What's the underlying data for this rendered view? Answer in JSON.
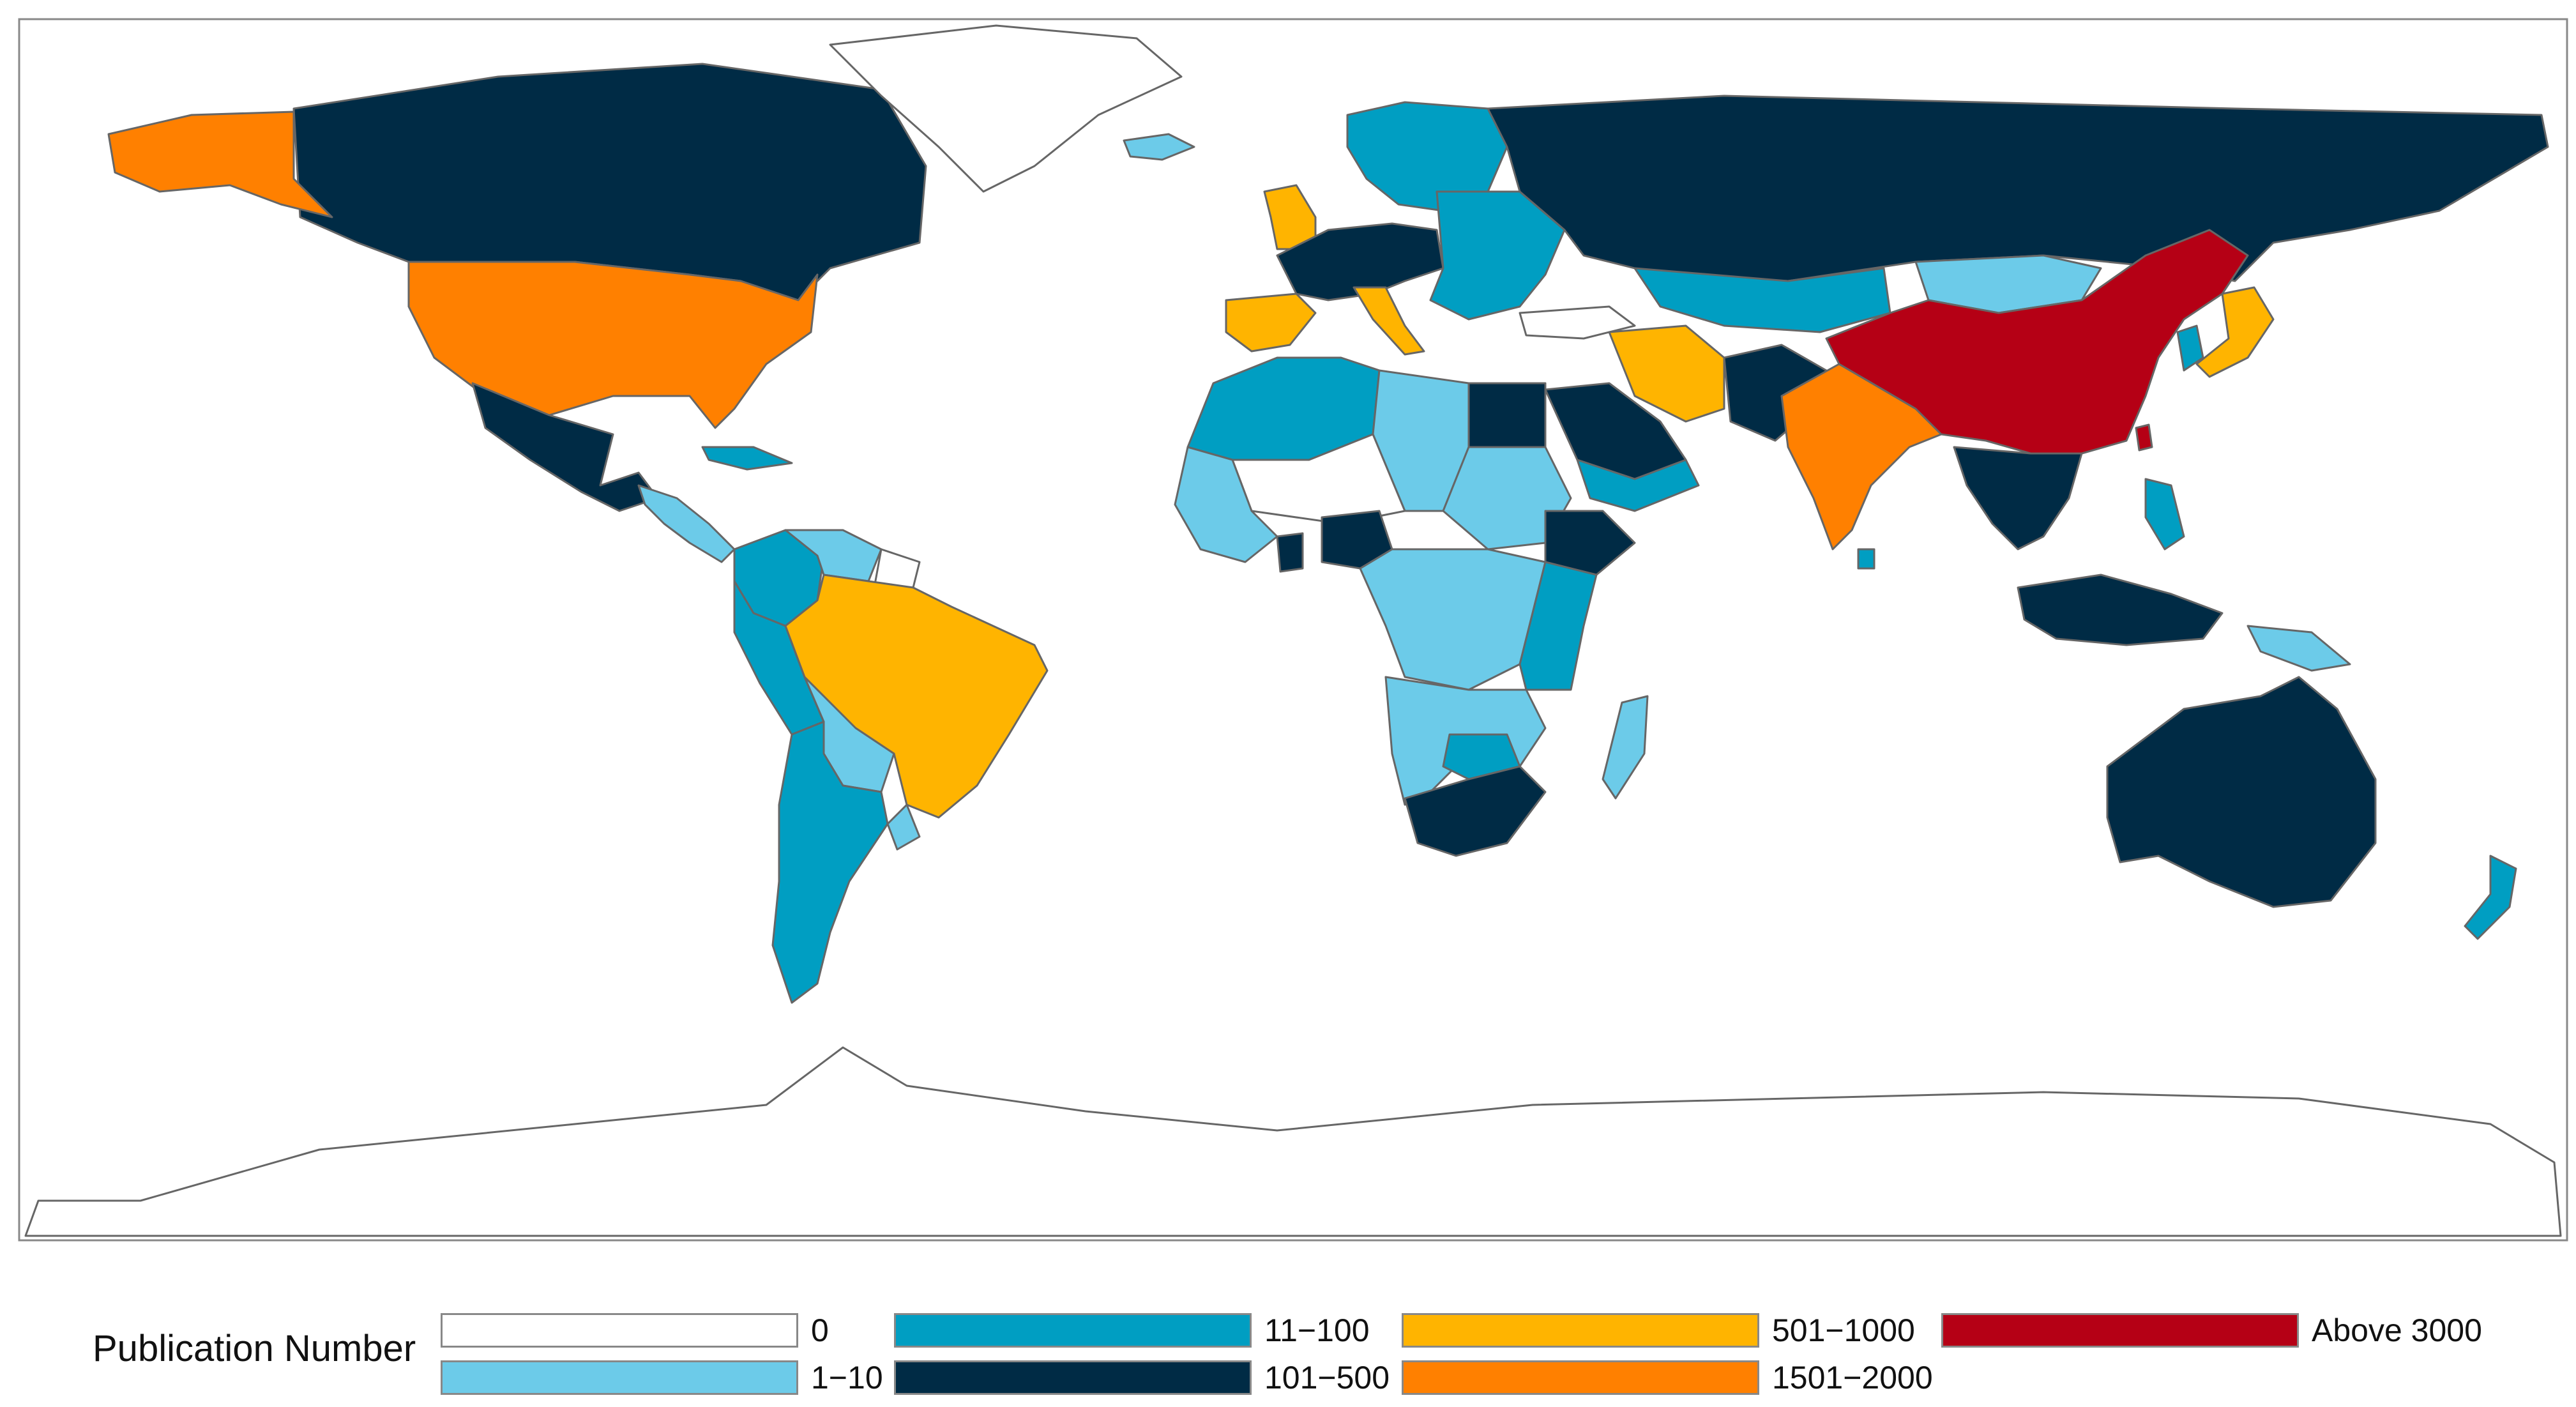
{
  "map": {
    "projection": "equirectangular",
    "frame": "thin grey border",
    "ocean_color": "#ffffff",
    "no_data_outline": "#666666"
  },
  "legend": {
    "title": "Publication Number",
    "classes": [
      {
        "id": "c0",
        "label": "0",
        "color": "#ffffff"
      },
      {
        "id": "c1",
        "label": "1−10",
        "color": "#6ccbe9"
      },
      {
        "id": "c2",
        "label": "11−100",
        "color": "#009ec2"
      },
      {
        "id": "c3",
        "label": "101−500",
        "color": "#002b45"
      },
      {
        "id": "c4",
        "label": "501−1000",
        "color": "#ffb400"
      },
      {
        "id": "c5",
        "label": "1501−2000",
        "color": "#ff8000"
      },
      {
        "id": "c6",
        "label": "Above 3000",
        "color": "#b50015"
      }
    ]
  },
  "regions": [
    {
      "id": "canada",
      "class": "c3"
    },
    {
      "id": "alaska",
      "class": "c5"
    },
    {
      "id": "usa",
      "class": "c5"
    },
    {
      "id": "mexico",
      "class": "c3"
    },
    {
      "id": "greenland",
      "class": "c0"
    },
    {
      "id": "central-america",
      "class": "c1"
    },
    {
      "id": "caribbean",
      "class": "c2"
    },
    {
      "id": "colombia",
      "class": "c2"
    },
    {
      "id": "venezuela",
      "class": "c1"
    },
    {
      "id": "guianas",
      "class": "c0"
    },
    {
      "id": "ecuador-peru",
      "class": "c2"
    },
    {
      "id": "brazil",
      "class": "c4"
    },
    {
      "id": "bolivia-paraguay",
      "class": "c1"
    },
    {
      "id": "argentina-chile",
      "class": "c2"
    },
    {
      "id": "uruguay",
      "class": "c1"
    },
    {
      "id": "iceland",
      "class": "c1"
    },
    {
      "id": "scandinavia",
      "class": "c2"
    },
    {
      "id": "uk",
      "class": "c4"
    },
    {
      "id": "western-europe",
      "class": "c3"
    },
    {
      "id": "iberia",
      "class": "c4"
    },
    {
      "id": "italy",
      "class": "c4"
    },
    {
      "id": "eastern-europe",
      "class": "c2"
    },
    {
      "id": "russia",
      "class": "c3"
    },
    {
      "id": "kazakhstan",
      "class": "c2"
    },
    {
      "id": "mongolia",
      "class": "c1"
    },
    {
      "id": "turkey",
      "class": "c0"
    },
    {
      "id": "iran",
      "class": "c4"
    },
    {
      "id": "afghanistan-pakistan",
      "class": "c3"
    },
    {
      "id": "saudi-arabia",
      "class": "c3"
    },
    {
      "id": "gulf-yemen",
      "class": "c2"
    },
    {
      "id": "india",
      "class": "c5"
    },
    {
      "id": "sri-lanka",
      "class": "c2"
    },
    {
      "id": "china",
      "class": "c6"
    },
    {
      "id": "taiwan",
      "class": "c6"
    },
    {
      "id": "korea",
      "class": "c2"
    },
    {
      "id": "japan",
      "class": "c4"
    },
    {
      "id": "mainland-southeast-asia",
      "class": "c3"
    },
    {
      "id": "philippines",
      "class": "c2"
    },
    {
      "id": "indonesia",
      "class": "c3"
    },
    {
      "id": "papua-new-guinea",
      "class": "c1"
    },
    {
      "id": "australia",
      "class": "c3"
    },
    {
      "id": "new-zealand",
      "class": "c2"
    },
    {
      "id": "north-west-africa",
      "class": "c2"
    },
    {
      "id": "libya-chad",
      "class": "c1"
    },
    {
      "id": "sahel",
      "class": "c0"
    },
    {
      "id": "egypt",
      "class": "c3"
    },
    {
      "id": "sudan",
      "class": "c1"
    },
    {
      "id": "west-africa",
      "class": "c1"
    },
    {
      "id": "nigeria",
      "class": "c3"
    },
    {
      "id": "ghana",
      "class": "c3"
    },
    {
      "id": "ethiopia",
      "class": "c3"
    },
    {
      "id": "central-africa",
      "class": "c1"
    },
    {
      "id": "east-africa",
      "class": "c2"
    },
    {
      "id": "southern-africa",
      "class": "c1"
    },
    {
      "id": "zimbabwe-zambia",
      "class": "c2"
    },
    {
      "id": "south-africa",
      "class": "c3"
    },
    {
      "id": "madagascar",
      "class": "c1"
    },
    {
      "id": "antarctica",
      "class": "c0"
    }
  ]
}
